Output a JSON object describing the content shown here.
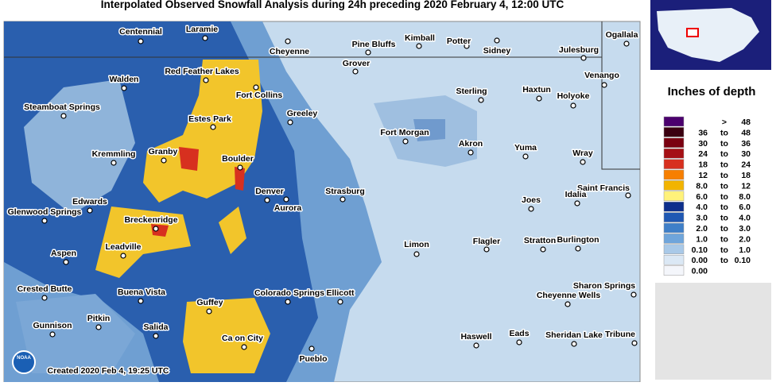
{
  "title": "Interpolated Observed Snowfall Analysis during 24h preceding 2020 February 4, 12:00 UTC",
  "credit": "Created 2020 Feb 4, 19:25 UTC",
  "logo": "NOAA",
  "legend": {
    "title": "Inches of depth",
    "rows": [
      [
        ">",
        "48"
      ],
      [
        "36",
        "to",
        "48"
      ],
      [
        "30",
        "to",
        "36"
      ],
      [
        "24",
        "to",
        "30"
      ],
      [
        "18",
        "to",
        "24"
      ],
      [
        "12",
        "to",
        "18"
      ],
      [
        "8.0",
        "to",
        "12"
      ],
      [
        "6.0",
        "to",
        "8.0"
      ],
      [
        "4.0",
        "to",
        "6.0"
      ],
      [
        "3.0",
        "to",
        "4.0"
      ],
      [
        "2.0",
        "to",
        "3.0"
      ],
      [
        "1.0",
        "to",
        "2.0"
      ],
      [
        "0.10",
        "to",
        "1.0"
      ],
      [
        "0.00",
        "to",
        "0.10"
      ],
      [
        "0.00"
      ]
    ]
  },
  "cities": [
    "Centennial",
    "Laramie",
    "Cheyenne",
    "Pine Bluffs",
    "Kimball",
    "Potter",
    "Sidney",
    "Ogallala",
    "Julesburg",
    "Grover",
    "Walden",
    "Red Feather Lakes",
    "Venango",
    "Fort Collins",
    "Sterling",
    "Haxtun",
    "Holyoke",
    "Steamboat Springs",
    "Greeley",
    "Estes Park",
    "Fort Morgan",
    "Akron",
    "Yuma",
    "Kremmling",
    "Granby",
    "Boulder",
    "Wray",
    "Saint Francis",
    "Denver",
    "Strasburg",
    "Idalia",
    "Joes",
    "Edwards",
    "Aurora",
    "Glenwood Springs",
    "Breckenridge",
    "Limon",
    "Flagler",
    "Stratton",
    "Burlington",
    "Leadville",
    "Aspen",
    "Crested Butte",
    "Buena Vista",
    "Colorado Springs",
    "Ellicott",
    "Sharon Springs",
    "Cheyenne Wells",
    "Guffey",
    "Pitkin",
    "Gunnison",
    "Salida",
    "Ca on City",
    "Haswell",
    "Eads",
    "Sheridan Lake",
    "Tribune",
    "Pueblo"
  ]
}
